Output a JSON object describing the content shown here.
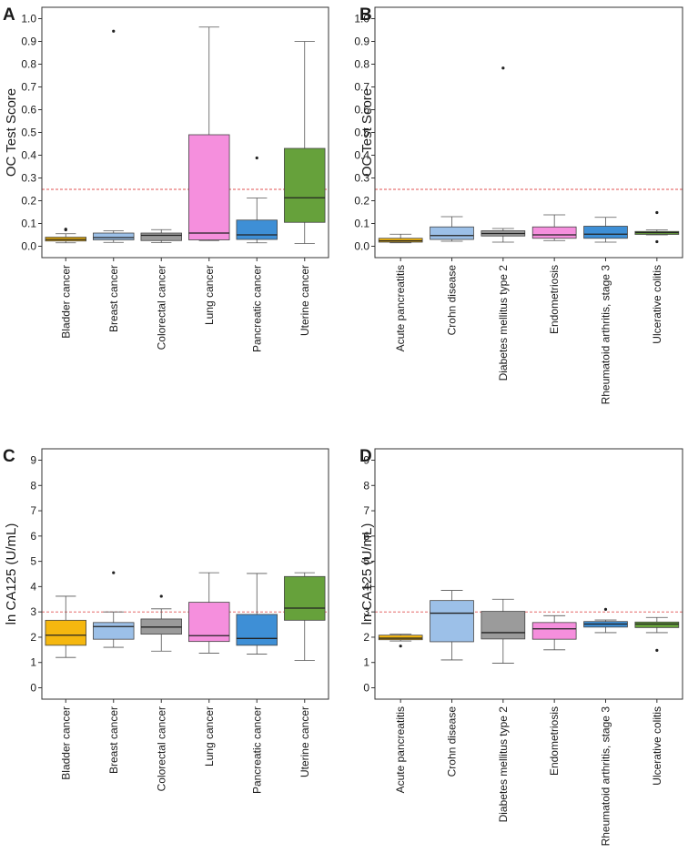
{
  "colors": {
    "yellow": "#f5b70f",
    "lightblue": "#9cc0e8",
    "gray": "#9b9b9b",
    "pink": "#f58fdd",
    "blue": "#3e8fd6",
    "green": "#66a13b",
    "reference_line": "#e05050"
  },
  "chart_data": [
    {
      "panel": "A",
      "type": "box",
      "ylabel": "OC Test Score",
      "ylim": [
        -0.05,
        1.05
      ],
      "yticks": [
        "0.0",
        "0.1",
        "0.2",
        "0.3",
        "0.4",
        "0.5",
        "0.6",
        "0.7",
        "0.8",
        "0.9",
        "1.0"
      ],
      "reference_line": 0.25,
      "categories": [
        "Bladder cancer",
        "Breast cancer",
        "Colorectal cancer",
        "Lung cancer",
        "Pancreatic cancer",
        "Uterine cancer"
      ],
      "fill_colors": [
        "yellow",
        "lightblue",
        "gray",
        "pink",
        "blue",
        "green"
      ],
      "boxes": [
        {
          "min": 0.015,
          "q1": 0.023,
          "median": 0.03,
          "q3": 0.04,
          "max": 0.055,
          "outliers": [
            0.072,
            0.075
          ]
        },
        {
          "min": 0.017,
          "q1": 0.028,
          "median": 0.038,
          "q3": 0.058,
          "max": 0.068,
          "outliers": [
            0.945
          ]
        },
        {
          "min": 0.016,
          "q1": 0.025,
          "median": 0.048,
          "q3": 0.058,
          "max": 0.073,
          "outliers": []
        },
        {
          "min": 0.025,
          "q1": 0.028,
          "median": 0.058,
          "q3": 0.49,
          "max": 0.963,
          "outliers": []
        },
        {
          "min": 0.015,
          "q1": 0.03,
          "median": 0.05,
          "q3": 0.115,
          "max": 0.212,
          "outliers": [
            0.388
          ]
        },
        {
          "min": 0.012,
          "q1": 0.105,
          "median": 0.213,
          "q3": 0.43,
          "max": 0.9,
          "outliers": []
        }
      ]
    },
    {
      "panel": "B",
      "type": "box",
      "ylabel": "OC Test Score",
      "ylim": [
        -0.05,
        1.05
      ],
      "yticks": [
        "0.0",
        "0.1",
        "0.2",
        "0.3",
        "0.4",
        "0.5",
        "0.6",
        "0.7",
        "0.8",
        "0.9",
        "1.0"
      ],
      "reference_line": 0.25,
      "categories": [
        "Acute pancreatitis",
        "Crohn disease",
        "Diabetes mellitus type 2",
        "Endometriosis",
        "Rheumatoid arthritis, stage 3",
        "Ulcerative colitis"
      ],
      "fill_colors": [
        "yellow",
        "lightblue",
        "gray",
        "pink",
        "blue",
        "green"
      ],
      "boxes": [
        {
          "min": 0.015,
          "q1": 0.018,
          "median": 0.024,
          "q3": 0.035,
          "max": 0.053,
          "outliers": []
        },
        {
          "min": 0.022,
          "q1": 0.03,
          "median": 0.047,
          "q3": 0.085,
          "max": 0.13,
          "outliers": []
        },
        {
          "min": 0.018,
          "q1": 0.045,
          "median": 0.056,
          "q3": 0.068,
          "max": 0.078,
          "outliers": [
            0.783
          ]
        },
        {
          "min": 0.025,
          "q1": 0.035,
          "median": 0.05,
          "q3": 0.085,
          "max": 0.138,
          "outliers": []
        },
        {
          "min": 0.018,
          "q1": 0.035,
          "median": 0.053,
          "q3": 0.088,
          "max": 0.127,
          "outliers": []
        },
        {
          "min": 0.05,
          "q1": 0.052,
          "median": 0.06,
          "q3": 0.065,
          "max": 0.072,
          "outliers": [
            0.148,
            0.02
          ]
        }
      ]
    },
    {
      "panel": "C",
      "type": "box",
      "ylabel": "ln CA125 (U/mL)",
      "ylim": [
        -0.45,
        9.45
      ],
      "yticks": [
        "0",
        "1",
        "2",
        "3",
        "4",
        "5",
        "6",
        "7",
        "8",
        "9"
      ],
      "reference_line": 3.0,
      "categories": [
        "Bladder cancer",
        "Breast cancer",
        "Colorectal cancer",
        "Lung cancer",
        "Pancreatic cancer",
        "Uterine cancer"
      ],
      "fill_colors": [
        "yellow",
        "lightblue",
        "gray",
        "pink",
        "blue",
        "green"
      ],
      "boxes": [
        {
          "min": 1.2,
          "q1": 1.68,
          "median": 2.08,
          "q3": 2.67,
          "max": 3.62,
          "outliers": []
        },
        {
          "min": 1.6,
          "q1": 1.92,
          "median": 2.42,
          "q3": 2.58,
          "max": 3.0,
          "outliers": [
            4.55
          ]
        },
        {
          "min": 1.45,
          "q1": 2.12,
          "median": 2.4,
          "q3": 2.72,
          "max": 3.12,
          "outliers": [
            3.62
          ]
        },
        {
          "min": 1.37,
          "q1": 1.83,
          "median": 2.06,
          "q3": 3.38,
          "max": 4.55,
          "outliers": []
        },
        {
          "min": 1.33,
          "q1": 1.68,
          "median": 1.95,
          "q3": 2.9,
          "max": 4.52,
          "outliers": []
        },
        {
          "min": 1.08,
          "q1": 2.67,
          "median": 3.15,
          "q3": 4.4,
          "max": 4.55,
          "outliers": []
        }
      ]
    },
    {
      "panel": "D",
      "type": "box",
      "ylabel": "ln CA125 (U/mL)",
      "ylim": [
        -0.45,
        9.45
      ],
      "yticks": [
        "0",
        "1",
        "2",
        "3",
        "4",
        "5",
        "6",
        "7",
        "8",
        "9"
      ],
      "reference_line": 3.0,
      "categories": [
        "Acute pancreatitis",
        "Crohn disease",
        "Diabetes mellitus type 2",
        "Endometriosis",
        "Rheumatoid arthritis, stage 3",
        "Ulcerative colitis"
      ],
      "fill_colors": [
        "yellow",
        "lightblue",
        "gray",
        "pink",
        "blue",
        "green"
      ],
      "boxes": [
        {
          "min": 1.85,
          "q1": 1.9,
          "median": 1.96,
          "q3": 2.08,
          "max": 2.12,
          "outliers": [
            1.65
          ]
        },
        {
          "min": 1.1,
          "q1": 1.82,
          "median": 2.95,
          "q3": 3.45,
          "max": 3.85,
          "outliers": []
        },
        {
          "min": 0.97,
          "q1": 1.93,
          "median": 2.18,
          "q3": 3.02,
          "max": 3.5,
          "outliers": []
        },
        {
          "min": 1.5,
          "q1": 1.92,
          "median": 2.33,
          "q3": 2.58,
          "max": 2.85,
          "outliers": []
        },
        {
          "min": 2.18,
          "q1": 2.4,
          "median": 2.52,
          "q3": 2.62,
          "max": 2.68,
          "outliers": [
            3.1
          ]
        },
        {
          "min": 2.18,
          "q1": 2.38,
          "median": 2.52,
          "q3": 2.6,
          "max": 2.78,
          "outliers": [
            1.48
          ]
        }
      ]
    }
  ]
}
